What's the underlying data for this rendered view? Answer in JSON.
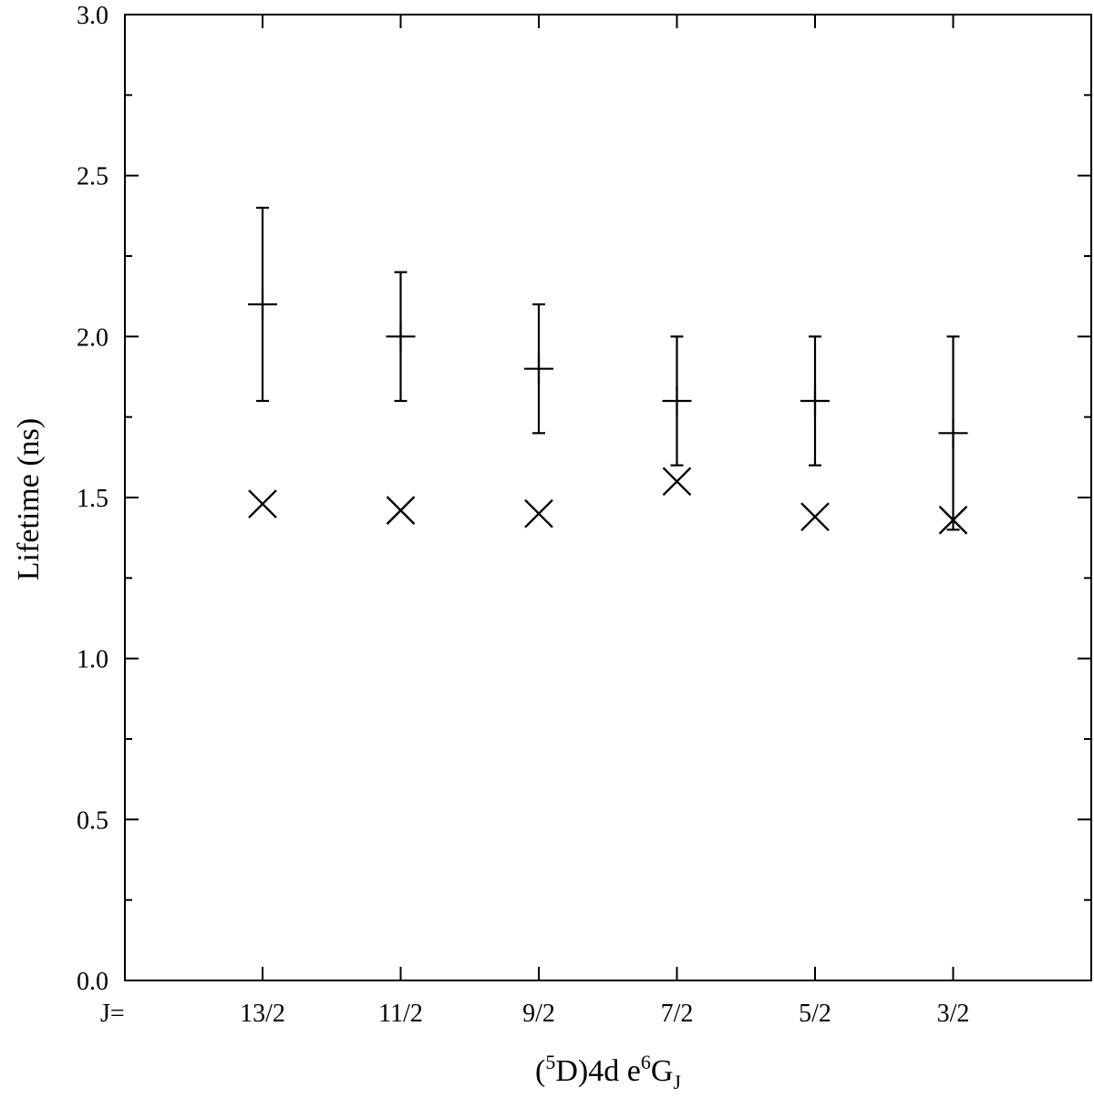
{
  "chart_data": {
    "type": "scatter",
    "title": "",
    "ylabel": "Lifetime (ns)",
    "xlabel": {
      "open_paren": "(",
      "sup1": "5",
      "mid": "D)4d e",
      "sup2": "6",
      "base": "G",
      "sub": "J"
    },
    "x_prefix_label": "J=",
    "categories": [
      "13/2",
      "11/2",
      "9/2",
      "7/2",
      "5/2",
      "3/2"
    ],
    "ylim": [
      0.0,
      3.0
    ],
    "yticks": [
      "0.0",
      "0.5",
      "1.0",
      "1.5",
      "2.0",
      "2.5",
      "3.0"
    ],
    "grid": false,
    "series": [
      {
        "marker": "plus",
        "values": [
          2.1,
          2.0,
          1.9,
          1.8,
          1.8,
          1.7
        ],
        "err_low": [
          1.8,
          1.8,
          1.7,
          1.6,
          1.6,
          1.4
        ],
        "err_high": [
          2.4,
          2.2,
          2.1,
          2.0,
          2.0,
          2.0
        ]
      },
      {
        "marker": "cross",
        "values": [
          1.48,
          1.46,
          1.45,
          1.55,
          1.44,
          1.43
        ]
      }
    ]
  }
}
